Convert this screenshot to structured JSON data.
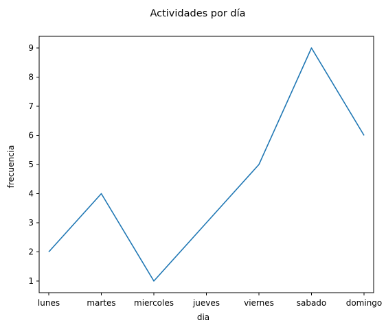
{
  "chart_data": {
    "type": "line",
    "title": "Actividades por día",
    "xlabel": "dia",
    "ylabel": "frecuencia",
    "categories": [
      "lunes",
      "martes",
      "miercoles",
      "jueves",
      "viernes",
      "sabado",
      "domingo"
    ],
    "series": [
      {
        "values": [
          2,
          4,
          1,
          3,
          5,
          9,
          6
        ],
        "color": "#1f77b4"
      }
    ],
    "yticks": [
      1,
      2,
      3,
      4,
      5,
      6,
      7,
      8,
      9
    ],
    "ylim": [
      0.6,
      9.4
    ],
    "grid": false,
    "legend": "none"
  }
}
